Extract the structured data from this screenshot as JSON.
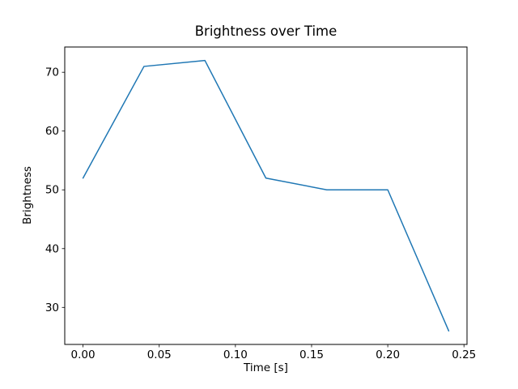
{
  "figure": {
    "background": "#ffffff",
    "text_color": "#000000"
  },
  "chart_data": {
    "type": "line",
    "title": "Brightness over Time",
    "xlabel": "Time [s]",
    "ylabel": "Brightness",
    "x": [
      0.0,
      0.04,
      0.08,
      0.12,
      0.16,
      0.2,
      0.24
    ],
    "y": [
      52,
      71,
      72,
      52,
      50,
      50,
      26
    ],
    "xticks": {
      "values": [
        0.0,
        0.05,
        0.1,
        0.15,
        0.2,
        0.25
      ],
      "labels": [
        "0.00",
        "0.05",
        "0.10",
        "0.15",
        "0.20",
        "0.25"
      ]
    },
    "yticks": {
      "values": [
        30,
        40,
        50,
        60,
        70
      ],
      "labels": [
        "30",
        "40",
        "50",
        "60",
        "70"
      ]
    },
    "xlim": [
      -0.012,
      0.252
    ],
    "ylim": [
      23.7,
      74.3
    ],
    "grid": false,
    "legend_position": "none",
    "line_color": "#1f77b4",
    "axis_color": "#000000"
  }
}
